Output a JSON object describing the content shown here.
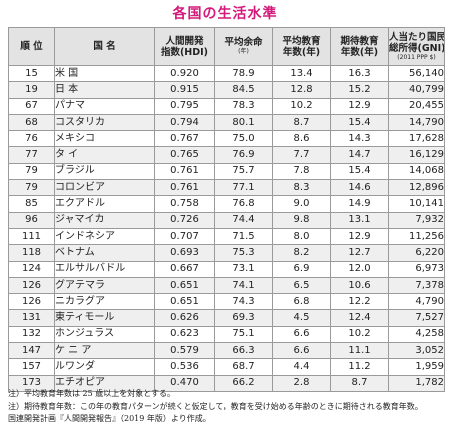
{
  "title": "各国の生活水準",
  "headers": {
    "rank": "順 位",
    "name": "国 名",
    "hdi": "人間開発",
    "hdi_sub": "指数(HDI)",
    "life": "平均余命",
    "life_sub": "(年)",
    "mean_school": "平均教育",
    "mean_school_sub": "年数(年)",
    "exp_school": "期待教育",
    "exp_school_sub": "年数(年)",
    "gni": "人当たり国民",
    "gni_mid": "総所得(GNI)",
    "gni_sub": "(2011 PPP $)"
  },
  "rows": [
    {
      "rank": "15",
      "name": "米 国",
      "hdi": "0.920",
      "life": "78.9",
      "mean_school": "13.4",
      "exp_school": "16.3",
      "gni": "56,140"
    },
    {
      "rank": "19",
      "name": "日 本",
      "hdi": "0.915",
      "life": "84.5",
      "mean_school": "12.8",
      "exp_school": "15.2",
      "gni": "40,799"
    },
    {
      "rank": "67",
      "name": "パナマ",
      "hdi": "0.795",
      "life": "78.3",
      "mean_school": "10.2",
      "exp_school": "12.9",
      "gni": "20,455"
    },
    {
      "rank": "68",
      "name": "コスタリカ",
      "hdi": "0.794",
      "life": "80.1",
      "mean_school": "8.7",
      "exp_school": "15.4",
      "gni": "14,790"
    },
    {
      "rank": "76",
      "name": "メキシコ",
      "hdi": "0.767",
      "life": "75.0",
      "mean_school": "8.6",
      "exp_school": "14.3",
      "gni": "17,628"
    },
    {
      "rank": "77",
      "name": "タ イ",
      "hdi": "0.765",
      "life": "76.9",
      "mean_school": "7.7",
      "exp_school": "14.7",
      "gni": "16,129"
    },
    {
      "rank": "79",
      "name": "ブラジル",
      "hdi": "0.761",
      "life": "75.7",
      "mean_school": "7.8",
      "exp_school": "15.4",
      "gni": "14,068"
    },
    {
      "rank": "79",
      "name": "コロンビア",
      "hdi": "0.761",
      "life": "77.1",
      "mean_school": "8.3",
      "exp_school": "14.6",
      "gni": "12,896"
    },
    {
      "rank": "85",
      "name": "エクアドル",
      "hdi": "0.758",
      "life": "76.8",
      "mean_school": "9.0",
      "exp_school": "14.9",
      "gni": "10,141"
    },
    {
      "rank": "96",
      "name": "ジャマイカ",
      "hdi": "0.726",
      "life": "74.4",
      "mean_school": "9.8",
      "exp_school": "13.1",
      "gni": "7,932"
    },
    {
      "rank": "111",
      "name": "インドネシア",
      "hdi": "0.707",
      "life": "71.5",
      "mean_school": "8.0",
      "exp_school": "12.9",
      "gni": "11,256"
    },
    {
      "rank": "118",
      "name": "ベトナム",
      "hdi": "0.693",
      "life": "75.3",
      "mean_school": "8.2",
      "exp_school": "12.7",
      "gni": "6,220"
    },
    {
      "rank": "124",
      "name": "エルサルバドル",
      "hdi": "0.667",
      "life": "73.1",
      "mean_school": "6.9",
      "exp_school": "12.0",
      "gni": "6,973"
    },
    {
      "rank": "126",
      "name": "グアテマラ",
      "hdi": "0.651",
      "life": "74.1",
      "mean_school": "6.5",
      "exp_school": "10.6",
      "gni": "7,378"
    },
    {
      "rank": "126",
      "name": "ニカラグア",
      "hdi": "0.651",
      "life": "74.3",
      "mean_school": "6.8",
      "exp_school": "12.2",
      "gni": "4,790"
    },
    {
      "rank": "131",
      "name": "東ティモール",
      "hdi": "0.626",
      "life": "69.3",
      "mean_school": "4.5",
      "exp_school": "12.4",
      "gni": "7,527"
    },
    {
      "rank": "132",
      "name": "ホンジュラス",
      "hdi": "0.623",
      "life": "75.1",
      "mean_school": "6.6",
      "exp_school": "10.2",
      "gni": "4,258"
    },
    {
      "rank": "147",
      "name": "ケ ニ ア",
      "hdi": "0.579",
      "life": "66.3",
      "mean_school": "6.6",
      "exp_school": "11.1",
      "gni": "3,052"
    },
    {
      "rank": "157",
      "name": "ルワンダ",
      "hdi": "0.536",
      "life": "68.7",
      "mean_school": "4.4",
      "exp_school": "11.2",
      "gni": "1,959"
    },
    {
      "rank": "173",
      "name": "エチオピア",
      "hdi": "0.470",
      "life": "66.2",
      "mean_school": "2.8",
      "exp_school": "8.7",
      "gni": "1,782"
    }
  ],
  "notes": [
    "注）平均教育年数は 25 歳以上を対象とする。",
    "注）期待教育年数：この年の教育パターンが続くと仮定して，教育を受け始める年齢のときに期待される教育年数。",
    "国連開発計画『人間開発報告』（2019 年版）より作成。"
  ]
}
